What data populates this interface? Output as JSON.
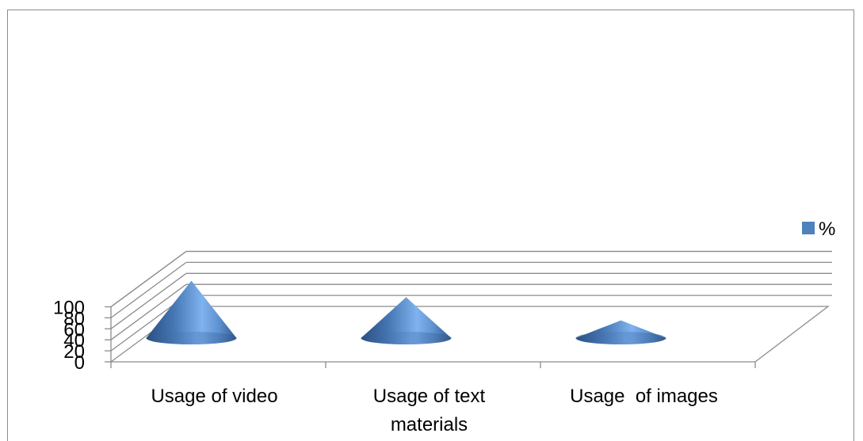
{
  "chart_data": {
    "type": "bar",
    "style": "3d-cone",
    "categories": [
      [
        "Usage of video"
      ],
      [
        "Usage of text",
        "materials"
      ],
      [
        "Usage  of images"
      ]
    ],
    "series": [
      {
        "name": "%",
        "values": [
          97,
          67,
          25
        ],
        "color": "#4f81bd"
      }
    ],
    "yticks": [
      0,
      20,
      40,
      60,
      80,
      100
    ],
    "ylim": [
      0,
      100
    ],
    "grid": true,
    "legend": "right"
  }
}
